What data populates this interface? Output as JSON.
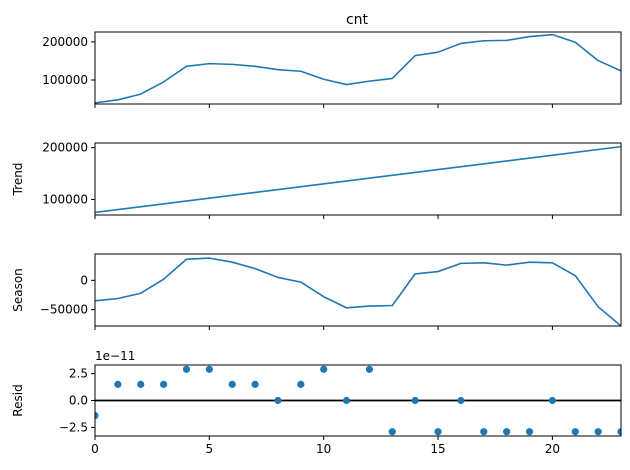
{
  "figure_title": "cnt",
  "x_ticks": [
    0,
    5,
    10,
    15,
    20
  ],
  "colors": {
    "line": "#1f77b4",
    "zero_line": "#000000",
    "axis": "#000000",
    "background": "#ffffff"
  },
  "chart_data": [
    {
      "type": "line",
      "title": "cnt",
      "ylabel": "",
      "x": [
        0,
        1,
        2,
        3,
        4,
        5,
        6,
        7,
        8,
        9,
        10,
        11,
        12,
        13,
        14,
        15,
        16,
        17,
        18,
        19,
        20,
        21,
        22,
        23
      ],
      "values": [
        40000,
        48000,
        63000,
        95000,
        136000,
        143000,
        141000,
        136000,
        127000,
        123000,
        102000,
        88000,
        97000,
        104000,
        164000,
        173000,
        196000,
        203000,
        204000,
        214000,
        219000,
        199000,
        151000,
        124000
      ],
      "xlim": [
        0,
        23
      ],
      "ylim": [
        37000,
        226000
      ],
      "yticks": [
        100000,
        200000
      ],
      "ytick_labels": [
        "100000",
        "200000"
      ]
    },
    {
      "type": "line",
      "title": "",
      "ylabel": "Trend",
      "x": [
        0,
        23
      ],
      "values": [
        75000,
        202000
      ],
      "xlim": [
        0,
        23
      ],
      "ylim": [
        70000,
        209000
      ],
      "yticks": [
        100000,
        200000
      ],
      "ytick_labels": [
        "100000",
        "200000"
      ]
    },
    {
      "type": "line",
      "title": "",
      "ylabel": "Season",
      "x": [
        0,
        1,
        2,
        3,
        4,
        5,
        6,
        7,
        8,
        9,
        10,
        11,
        12,
        13,
        14,
        15,
        16,
        17,
        18,
        19,
        20,
        21,
        22,
        23
      ],
      "values": [
        -35000,
        -31000,
        -22000,
        2000,
        36000,
        38000,
        31000,
        20000,
        5000,
        -3000,
        -28000,
        -47000,
        -44000,
        -43000,
        11000,
        15000,
        29000,
        30000,
        26000,
        31000,
        30000,
        8000,
        -45000,
        -78000
      ],
      "xlim": [
        0,
        23
      ],
      "ylim": [
        -78000,
        45000
      ],
      "yticks": [
        -50000,
        0
      ],
      "ytick_labels": [
        "−50000",
        "0"
      ]
    },
    {
      "type": "scatter",
      "title": "",
      "ylabel": "Resid",
      "offset_label": "1e−11",
      "x": [
        0,
        1,
        2,
        3,
        4,
        5,
        6,
        7,
        8,
        9,
        10,
        11,
        12,
        13,
        14,
        15,
        16,
        17,
        18,
        19,
        20,
        21,
        22,
        23
      ],
      "values": [
        -1.4,
        1.5,
        1.5,
        1.5,
        2.9,
        2.9,
        1.5,
        1.5,
        0.0,
        1.5,
        2.9,
        0.0,
        2.9,
        -2.9,
        0.0,
        -2.9,
        0.0,
        -2.9,
        -2.9,
        -2.9,
        0.0,
        -2.9,
        -2.9,
        -2.9
      ],
      "xlim": [
        0,
        23
      ],
      "ylim": [
        -3.3,
        3.3
      ],
      "yticks": [
        -2.5,
        0.0,
        2.5
      ],
      "ytick_labels": [
        "−2.5",
        "0.0",
        "2.5"
      ],
      "zero_line": true
    }
  ]
}
